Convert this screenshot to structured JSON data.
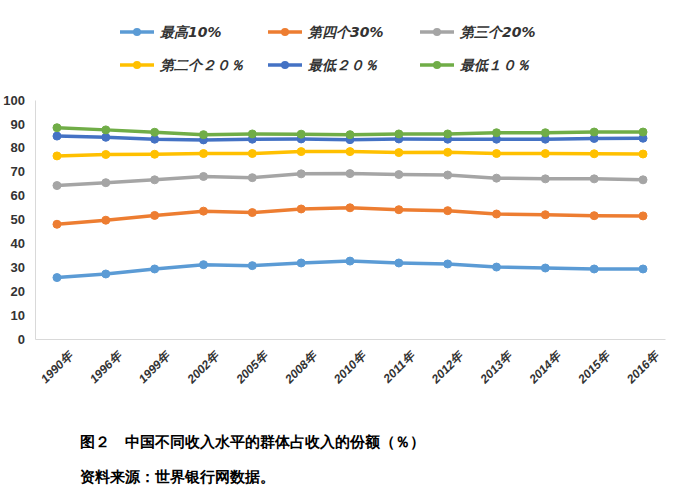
{
  "chart_data": {
    "type": "line",
    "title": "图２　中国不同收入水平的群体占收入的份额（％）",
    "annotations": [
      "资料来源：世界银行网数据。"
    ],
    "categories": [
      "1990年",
      "1996年",
      "1999年",
      "2002年",
      "2005年",
      "2008年",
      "2010年",
      "2011年",
      "2012年",
      "2013年",
      "2014年",
      "2015年",
      "2016年"
    ],
    "series": [
      {
        "name": "最高10%",
        "color": "#5b9bd5",
        "values": [
          25.7,
          27.2,
          29.3,
          31.1,
          30.7,
          31.8,
          32.6,
          31.8,
          31.4,
          30.1,
          29.7,
          29.3,
          29.3
        ]
      },
      {
        "name": "第四个30%",
        "color": "#ed7d31",
        "values": [
          48.0,
          49.7,
          51.7,
          53.5,
          52.9,
          54.4,
          54.9,
          54.1,
          53.7,
          52.3,
          52.0,
          51.6,
          51.5
        ]
      },
      {
        "name": "第三个20%",
        "color": "#a5a5a5",
        "values": [
          64.2,
          65.4,
          66.6,
          68.0,
          67.5,
          69.1,
          69.2,
          68.8,
          68.6,
          67.3,
          67.0,
          67.0,
          66.6
        ]
      },
      {
        "name": "第二个２０％",
        "color": "#ffc000",
        "values": [
          76.6,
          77.2,
          77.3,
          77.6,
          77.6,
          78.4,
          78.4,
          78.0,
          78.1,
          77.6,
          77.6,
          77.5,
          77.4
        ]
      },
      {
        "name": "最低２０％",
        "color": "#4472c4",
        "values": [
          84.9,
          84.4,
          83.6,
          83.3,
          83.6,
          83.7,
          83.4,
          83.7,
          83.6,
          83.6,
          83.6,
          83.9,
          84.0
        ]
      },
      {
        "name": "最低１０％",
        "color": "#70ad47",
        "values": [
          88.4,
          87.5,
          86.5,
          85.5,
          85.8,
          85.7,
          85.5,
          85.8,
          85.8,
          86.3,
          86.3,
          86.6,
          86.6
        ]
      }
    ],
    "ylim": [
      0,
      100
    ],
    "yticks": [
      0,
      10,
      20,
      30,
      40,
      50,
      60,
      70,
      80,
      90,
      100
    ],
    "grid": false,
    "legend": "top",
    "marker": "circle"
  }
}
